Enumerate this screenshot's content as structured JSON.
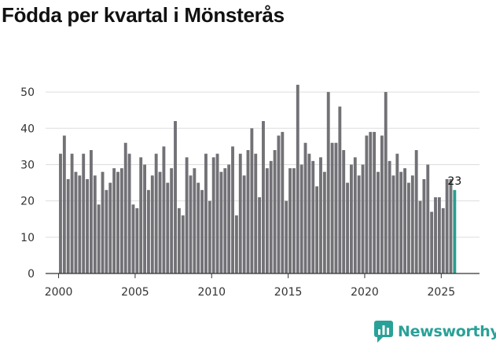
{
  "title": "Födda per kvartal i Mönsterås",
  "brand": {
    "name": "Newsworthy",
    "icon": "newsworthy-logo-icon"
  },
  "colors": {
    "bar": "#727176",
    "highlight": "#2a9d8f",
    "axis": "#333333",
    "grid": "#dddddd",
    "brand": "#2aa198"
  },
  "chart_data": {
    "type": "bar",
    "title": "Födda per kvartal i Mönsterås",
    "xlabel": "",
    "ylabel": "",
    "ylim": [
      0,
      55
    ],
    "yticks": [
      0,
      10,
      20,
      30,
      40,
      50
    ],
    "xlim": [
      1999.15,
      2027.5
    ],
    "xticks": [
      2000,
      2005,
      2010,
      2015,
      2020,
      2025
    ],
    "start": 2000,
    "highlight_last": true,
    "last_label": "23",
    "values": [
      33,
      38,
      26,
      33,
      28,
      27,
      33,
      26,
      34,
      27,
      19,
      28,
      23,
      25,
      29,
      28,
      29,
      36,
      33,
      19,
      18,
      32,
      30,
      23,
      27,
      33,
      28,
      35,
      25,
      29,
      42,
      18,
      16,
      32,
      27,
      29,
      25,
      23,
      33,
      20,
      32,
      33,
      28,
      29,
      30,
      35,
      16,
      33,
      27,
      34,
      40,
      33,
      21,
      42,
      29,
      31,
      34,
      38,
      39,
      20,
      29,
      29,
      52,
      30,
      36,
      33,
      31,
      24,
      32,
      28,
      50,
      36,
      36,
      46,
      34,
      25,
      30,
      32,
      27,
      30,
      38,
      39,
      39,
      28,
      38,
      50,
      31,
      27,
      33,
      28,
      29,
      25,
      27,
      34,
      20,
      26,
      30,
      17,
      21,
      21,
      18,
      26,
      26,
      23
    ]
  }
}
